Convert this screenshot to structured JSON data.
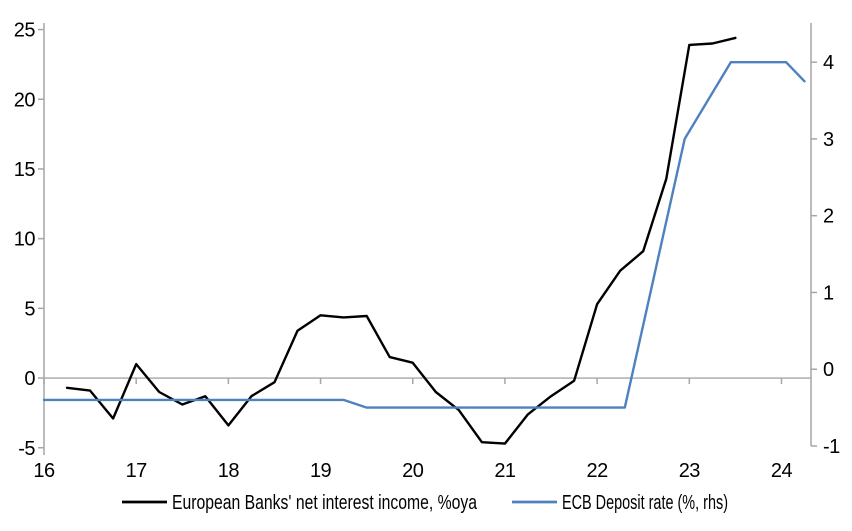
{
  "chart_data": {
    "type": "line",
    "title": "",
    "series": [
      {
        "name": "European Banks' net interest income, %oya",
        "color": "#000000",
        "axis": "left",
        "points": [
          [
            16.25,
            -0.7
          ],
          [
            16.5,
            -0.9
          ],
          [
            16.75,
            -2.9
          ],
          [
            17.0,
            1.0
          ],
          [
            17.25,
            -1.0
          ],
          [
            17.5,
            -1.9
          ],
          [
            17.75,
            -1.3
          ],
          [
            18.0,
            -3.4
          ],
          [
            18.25,
            -1.3
          ],
          [
            18.5,
            -0.3
          ],
          [
            18.75,
            3.4
          ],
          [
            19.0,
            4.5
          ],
          [
            19.25,
            4.35
          ],
          [
            19.5,
            4.45
          ],
          [
            19.75,
            1.5
          ],
          [
            20.0,
            1.1
          ],
          [
            20.25,
            -1.0
          ],
          [
            20.5,
            -2.3
          ],
          [
            20.75,
            -4.6
          ],
          [
            21.0,
            -4.7
          ],
          [
            21.25,
            -2.6
          ],
          [
            21.5,
            -1.3
          ],
          [
            21.75,
            -0.2
          ],
          [
            22.0,
            5.3
          ],
          [
            22.25,
            7.7
          ],
          [
            22.5,
            9.1
          ],
          [
            22.75,
            14.3
          ],
          [
            23.0,
            23.9
          ],
          [
            23.25,
            24.0
          ],
          [
            23.5,
            24.4
          ]
        ]
      },
      {
        "name": "ECB Deposit rate (%, rhs)",
        "color": "#4e81bd",
        "axis": "right",
        "points": [
          [
            16.0,
            -0.4
          ],
          [
            19.25,
            -0.4
          ],
          [
            19.5,
            -0.5
          ],
          [
            22.3,
            -0.5
          ],
          [
            22.95,
            3.0
          ],
          [
            23.45,
            4.0
          ],
          [
            24.05,
            4.0
          ],
          [
            24.25,
            3.75
          ]
        ]
      }
    ],
    "x_axis": {
      "range": [
        16,
        24.32
      ],
      "ticks": [
        16,
        17,
        18,
        19,
        20,
        21,
        22,
        23,
        24
      ],
      "tick_labels": [
        "16",
        "17",
        "18",
        "19",
        "20",
        "21",
        "22",
        "23",
        "24"
      ],
      "baseline_value": 0
    },
    "left_axis": {
      "range": [
        -5.52,
        25.47
      ],
      "ticks": [
        -5,
        0,
        5,
        10,
        15,
        20,
        25
      ],
      "tick_labels": [
        "-5",
        "0",
        "5",
        "10",
        "15",
        "20",
        "25"
      ]
    },
    "right_axis": {
      "range": [
        -1,
        4.51
      ],
      "ticks": [
        -1,
        0,
        1,
        2,
        3,
        4
      ],
      "tick_labels": [
        "-1",
        "0",
        "1",
        "2",
        "3",
        "4"
      ]
    },
    "grid": false,
    "legend_position": "bottom"
  },
  "colors": {
    "background": "#ffffff",
    "axis": "#a6a6a6",
    "text": "#000000",
    "series_black": "#000000",
    "series_blue": "#4e81bd"
  }
}
